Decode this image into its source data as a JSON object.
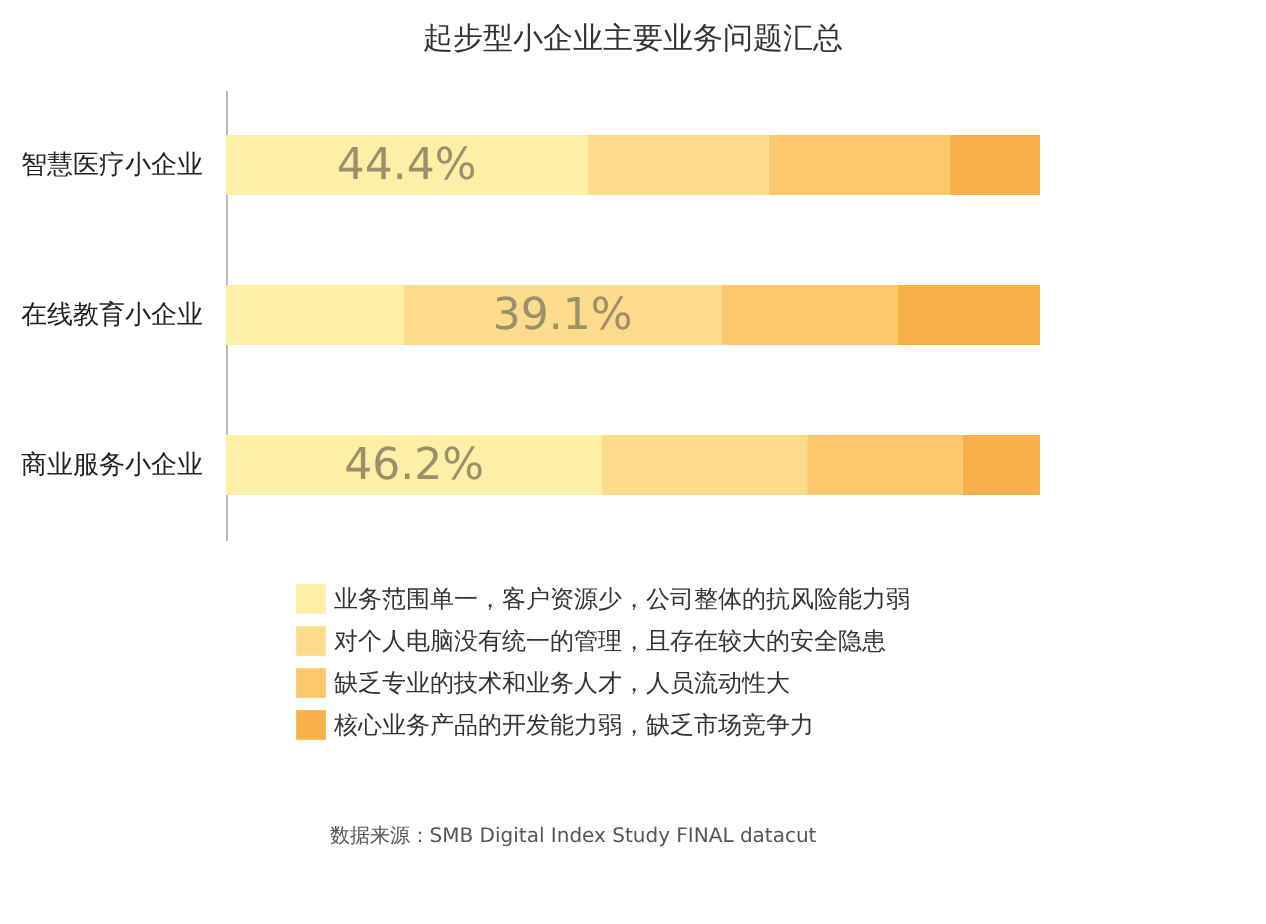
{
  "chart_data": {
    "type": "bar",
    "orientation": "horizontal",
    "stacked": true,
    "title": "起步型小企业主要业务问题汇总",
    "categories": [
      "智慧医疗小企业",
      "在线教育小企业",
      "商业服务小企业"
    ],
    "xlim": [
      0,
      100
    ],
    "tick_labels": "y",
    "legend": "bottom",
    "series": [
      {
        "name": "业务范围单一，客户资源少，公司整体的抗风险能力弱",
        "color": "#fdf0a6",
        "values": [
          44.4,
          21.8,
          46.2
        ],
        "value_labels": [
          "44.4%",
          null,
          "46.2%"
        ]
      },
      {
        "name": "对个人电脑没有统一的管理，且存在较大的安全隐患",
        "color": "#fcdc8c",
        "values": [
          22.3,
          39.1,
          25.2
        ],
        "value_labels": [
          null,
          "39.1%",
          null
        ]
      },
      {
        "name": "缺乏专业的技术和业务人才，人员流动性大",
        "color": "#fbc86c",
        "values": [
          22.2,
          21.6,
          19.1
        ]
      },
      {
        "name": "核心业务产品的开发能力弱，缺乏市场竞争力",
        "color": "#f8b04a",
        "values": [
          11.1,
          17.5,
          9.5
        ]
      }
    ],
    "annotations": [
      "数据来源：SMB Digital Index Study FINAL datacut"
    ]
  }
}
